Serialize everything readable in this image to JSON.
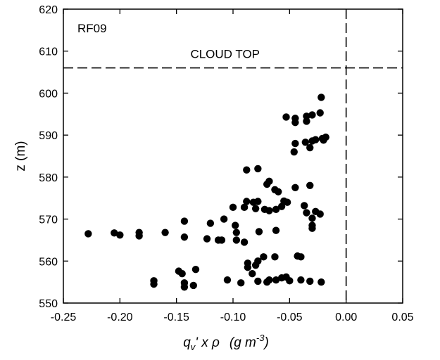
{
  "chart_data": {
    "type": "scatter",
    "panel_label": "RF09",
    "annotation": "CLOUD TOP",
    "cloud_top_z": 606,
    "zero_line_x": 0.0,
    "xlabel": {
      "q": "q",
      "sub": "v",
      "rest": "' x ρ",
      "unit_open": "(g m",
      "unit_exp": "-3",
      "unit_close": ")"
    },
    "ylabel": "z (m)",
    "xlim": [
      -0.25,
      0.05
    ],
    "ylim": [
      550,
      620
    ],
    "xticks": [
      -0.25,
      -0.2,
      -0.15,
      -0.1,
      -0.05,
      0.0,
      0.05
    ],
    "xtick_labels": [
      "-0.25",
      "-0.20",
      "-0.15",
      "-0.10",
      "-0.05",
      "0.00",
      "0.05"
    ],
    "yticks": [
      550,
      560,
      570,
      580,
      590,
      600,
      610,
      620
    ],
    "ytick_labels": [
      "550",
      "560",
      "570",
      "580",
      "590",
      "600",
      "610",
      "620"
    ],
    "colors": {
      "marker": "#000000",
      "axis": "#000000"
    },
    "points": [
      [
        -0.022,
        599.0
      ],
      [
        -0.053,
        594.3
      ],
      [
        -0.045,
        594.0
      ],
      [
        -0.035,
        594.5
      ],
      [
        -0.03,
        594.8
      ],
      [
        -0.023,
        595.3
      ],
      [
        -0.045,
        593.0
      ],
      [
        -0.035,
        593.3
      ],
      [
        -0.018,
        589.5
      ],
      [
        -0.021,
        589.2
      ],
      [
        -0.02,
        588.8
      ],
      [
        -0.036,
        588.3
      ],
      [
        -0.03,
        588.6
      ],
      [
        -0.027,
        588.9
      ],
      [
        -0.045,
        588.0
      ],
      [
        -0.032,
        587.0
      ],
      [
        -0.046,
        586.0
      ],
      [
        -0.088,
        581.7
      ],
      [
        -0.078,
        582.0
      ],
      [
        -0.068,
        579.0
      ],
      [
        -0.07,
        578.3
      ],
      [
        -0.063,
        577.0
      ],
      [
        -0.06,
        576.5
      ],
      [
        -0.045,
        577.5
      ],
      [
        -0.032,
        578.0
      ],
      [
        -0.088,
        574.2
      ],
      [
        -0.082,
        574.0
      ],
      [
        -0.078,
        574.2
      ],
      [
        -0.055,
        574.3
      ],
      [
        -0.052,
        574.0
      ],
      [
        -0.1,
        572.8
      ],
      [
        -0.09,
        572.8
      ],
      [
        -0.08,
        572.5
      ],
      [
        -0.072,
        572.3
      ],
      [
        -0.068,
        572.0
      ],
      [
        -0.062,
        572.3
      ],
      [
        -0.057,
        573.0
      ],
      [
        -0.037,
        573.2
      ],
      [
        -0.035,
        571.5
      ],
      [
        -0.027,
        571.8
      ],
      [
        -0.023,
        571.2
      ],
      [
        -0.03,
        570.2
      ],
      [
        -0.108,
        570.0
      ],
      [
        -0.143,
        569.5
      ],
      [
        -0.12,
        569.0
      ],
      [
        -0.098,
        568.5
      ],
      [
        -0.03,
        568.5
      ],
      [
        -0.03,
        567.8
      ],
      [
        -0.228,
        566.5
      ],
      [
        -0.205,
        566.7
      ],
      [
        -0.2,
        566.2
      ],
      [
        -0.183,
        566.8
      ],
      [
        -0.183,
        566.0
      ],
      [
        -0.16,
        566.8
      ],
      [
        -0.143,
        565.7
      ],
      [
        -0.123,
        565.3
      ],
      [
        -0.113,
        565.0
      ],
      [
        -0.11,
        565.0
      ],
      [
        -0.097,
        566.8
      ],
      [
        -0.097,
        565.0
      ],
      [
        -0.09,
        564.5
      ],
      [
        -0.077,
        567.0
      ],
      [
        -0.062,
        567.3
      ],
      [
        -0.073,
        561.0
      ],
      [
        -0.063,
        561.0
      ],
      [
        -0.043,
        561.2
      ],
      [
        -0.04,
        561.0
      ],
      [
        -0.078,
        560.0
      ],
      [
        -0.087,
        559.5
      ],
      [
        -0.087,
        558.5
      ],
      [
        -0.08,
        559.0
      ],
      [
        -0.148,
        557.6
      ],
      [
        -0.145,
        557.0
      ],
      [
        -0.133,
        558.0
      ],
      [
        -0.083,
        557.0
      ],
      [
        -0.17,
        555.3
      ],
      [
        -0.17,
        554.5
      ],
      [
        -0.143,
        554.8
      ],
      [
        -0.143,
        553.8
      ],
      [
        -0.135,
        554.2
      ],
      [
        -0.105,
        555.5
      ],
      [
        -0.093,
        554.8
      ],
      [
        -0.078,
        555.2
      ],
      [
        -0.07,
        555.0
      ],
      [
        -0.068,
        555.5
      ],
      [
        -0.062,
        555.5
      ],
      [
        -0.057,
        556.0
      ],
      [
        -0.053,
        556.2
      ],
      [
        -0.05,
        555.3
      ],
      [
        -0.04,
        555.5
      ],
      [
        -0.032,
        555.2
      ],
      [
        -0.022,
        555.0
      ]
    ]
  }
}
